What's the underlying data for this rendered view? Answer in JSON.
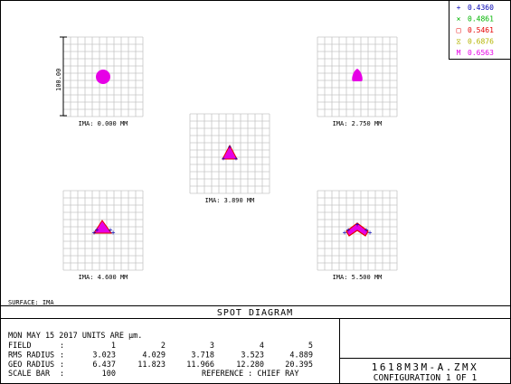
{
  "legend": [
    {
      "marker": "+",
      "label": "0.4360",
      "color": "#0000b4"
    },
    {
      "marker": "×",
      "label": "0.4861",
      "color": "#00b400"
    },
    {
      "marker": "□",
      "label": "0.5461",
      "color": "#e60000"
    },
    {
      "marker": "⧖",
      "label": "0.6876",
      "color": "#b4b400"
    },
    {
      "marker": "M",
      "label": "0.6563",
      "color": "#e600e6"
    }
  ],
  "spots": [
    {
      "ima": "IMA: 0.000 MM",
      "shape": "circle"
    },
    {
      "ima": "IMA: 2.750 MM",
      "shape": "drop"
    },
    {
      "ima": "IMA: 3.890 MM",
      "shape": "tri"
    },
    {
      "ima": "IMA: 4.600 MM",
      "shape": "tri-wide"
    },
    {
      "ima": "IMA: 5.500 MM",
      "shape": "chevron"
    }
  ],
  "scale_label": "100.00",
  "surface": "SURFACE: IMA",
  "title": "SPOT DIAGRAM",
  "info": {
    "date_line": "MON MAY 15 2017  UNITS ARE µm.",
    "rows": [
      {
        "label": "FIELD",
        "colon": ":",
        "values": [
          "1",
          "2",
          "3",
          "4",
          "5"
        ]
      },
      {
        "label": "RMS RADIUS",
        "colon": ":",
        "values": [
          "3.023",
          "4.029",
          "3.718",
          "3.523",
          "4.889"
        ]
      },
      {
        "label": "GEO RADIUS",
        "colon": ":",
        "values": [
          "6.437",
          "11.823",
          "11.966",
          "12.280",
          "20.395"
        ]
      }
    ],
    "scale_bar_label": "SCALE BAR",
    "scale_bar_colon": ":",
    "scale_bar_value": "100",
    "reference": "REFERENCE  : CHIEF RAY"
  },
  "file": {
    "name": "1618M3M-A.ZMX",
    "config": "CONFIGURATION 1 OF 1"
  }
}
